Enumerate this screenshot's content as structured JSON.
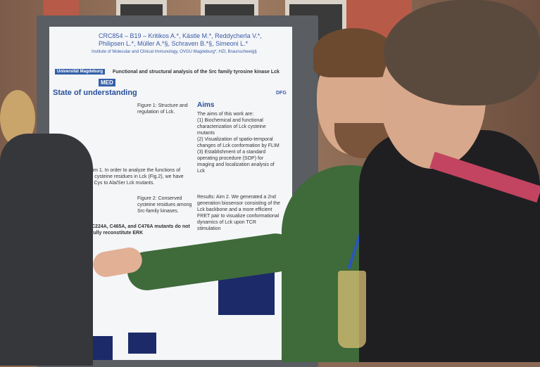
{
  "poster": {
    "project": "CRC854 – B19 – Kritikos A.*, Kästle M.*, Reddycherla V.*, Philipsen L.*, Müller A.*§, Schraven B.*§, Simeoni L.*",
    "institute": "Institute of Molecular and Clinical Immunology, OVGU Magdeburg*, HZI, Braunschweig§",
    "title": "Functional and structural analysis of the Src family tyrosine kinase Lck",
    "logo_university": "Universität Magdeburg",
    "logo_med": "MED",
    "logo_dfg": "DFG",
    "section_state": "State of understanding",
    "figure1": "Figure 1: Structure and regulation of Lck.",
    "section_aims": "Aims",
    "aims_intro": "The aims of this work are:",
    "aim_1": "(1) Biochemical and functional characterization of Lck cysteine mutants",
    "aim_2": "(2) Visualization of spatio-temporal changes of Lck conformation by FLIM",
    "aim_3": "(3) Establishment of a standard operating procedure (SOP) for imaging and localization analysis of Lck",
    "results_left": "Results: Aim 1. In order to analyze the functions of conserved cysteine residues in Lck (Fig.2), we have generated Cys to Ala/Ser Lck mutants.",
    "figure2": "Figure 2: Conserved cysteine residues among Src-family kinases.",
    "mutants": "C224A, C465A, and C476A mutants do not fully reconstitute ERK",
    "results_right": "Results: Aim 2. We generated a 2nd generation biosensor consisting of the Lck backbone and a more efficient FRET pair to visualize conformational dynamics of Lck upon TCR stimulation"
  }
}
